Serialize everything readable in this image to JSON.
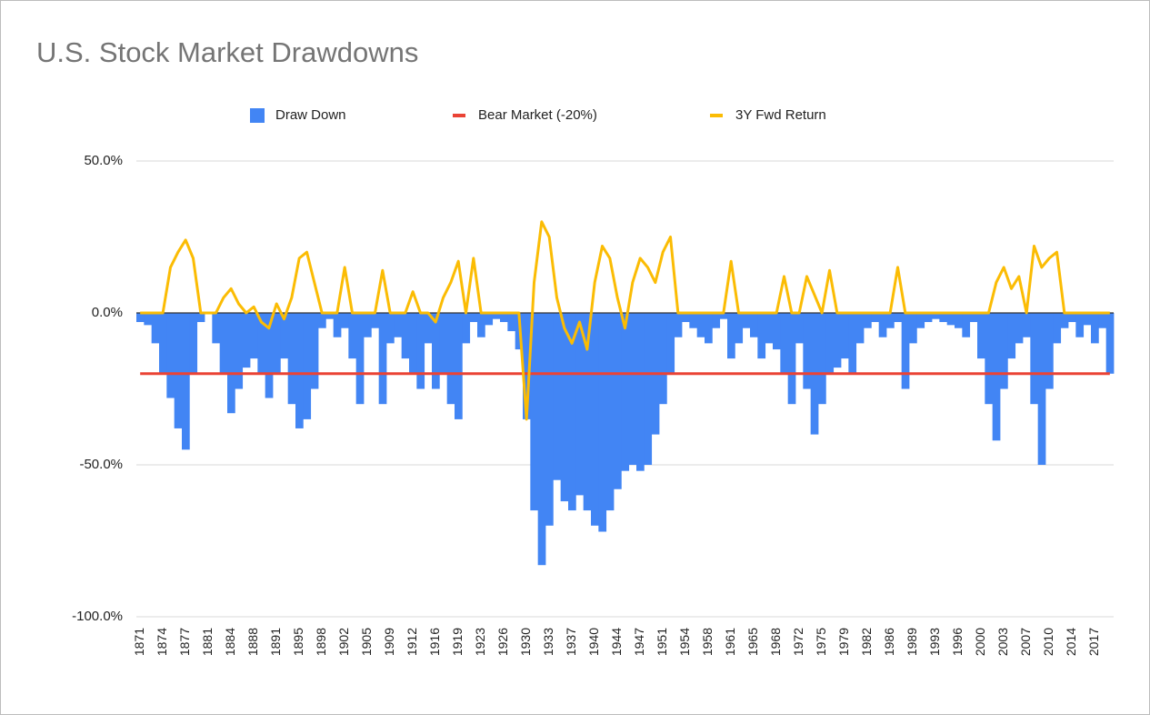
{
  "chart_data": {
    "type": "combo",
    "title": "U.S. Stock Market Drawdowns",
    "categories": [
      "1871",
      null,
      null,
      "1874",
      null,
      null,
      "1877",
      null,
      null,
      "1881",
      null,
      null,
      "1884",
      null,
      null,
      "1888",
      null,
      null,
      "1891",
      null,
      null,
      "1895",
      null,
      null,
      "1898",
      null,
      null,
      "1902",
      null,
      null,
      "1905",
      null,
      null,
      "1909",
      null,
      null,
      "1912",
      null,
      null,
      "1916",
      null,
      null,
      "1919",
      null,
      null,
      "1923",
      null,
      null,
      "1926",
      null,
      null,
      "1930",
      null,
      null,
      "1933",
      null,
      null,
      "1937",
      null,
      null,
      "1940",
      null,
      null,
      "1944",
      null,
      null,
      "1947",
      null,
      null,
      "1951",
      null,
      null,
      "1954",
      null,
      null,
      "1958",
      null,
      null,
      "1961",
      null,
      null,
      "1965",
      null,
      null,
      "1968",
      null,
      null,
      "1972",
      null,
      null,
      "1975",
      null,
      null,
      "1979",
      null,
      null,
      "1982",
      null,
      null,
      "1986",
      null,
      null,
      "1989",
      null,
      null,
      "1993",
      null,
      null,
      "1996",
      null,
      null,
      "2000",
      null,
      null,
      "2003",
      null,
      null,
      "2007",
      null,
      null,
      "2010",
      null,
      null,
      "2014",
      null,
      null,
      "2017",
      null,
      null
    ],
    "series": [
      {
        "name": "Draw Down",
        "type": "bar",
        "color": "#4285f4",
        "values": [
          -3,
          -4,
          -10,
          -20,
          -28,
          -38,
          -45,
          -20,
          -3,
          0,
          -10,
          -20,
          -33,
          -25,
          -18,
          -15,
          -20,
          -28,
          -20,
          -15,
          -30,
          -38,
          -35,
          -25,
          -5,
          -2,
          -8,
          -5,
          -15,
          -30,
          -8,
          -5,
          -30,
          -10,
          -8,
          -15,
          -20,
          -25,
          -10,
          -25,
          -20,
          -30,
          -35,
          -10,
          -3,
          -8,
          -4,
          -2,
          -3,
          -6,
          -12,
          -35,
          -65,
          -83,
          -70,
          -55,
          -62,
          -65,
          -60,
          -65,
          -70,
          -72,
          -65,
          -58,
          -52,
          -50,
          -52,
          -50,
          -40,
          -30,
          -20,
          -8,
          -3,
          -5,
          -8,
          -10,
          -5,
          -2,
          -15,
          -10,
          -5,
          -8,
          -15,
          -10,
          -12,
          -20,
          -30,
          -10,
          -25,
          -40,
          -30,
          -20,
          -18,
          -15,
          -20,
          -10,
          -5,
          -3,
          -8,
          -5,
          -3,
          -25,
          -10,
          -5,
          -3,
          -2,
          -3,
          -4,
          -5,
          -8,
          -3,
          -15,
          -30,
          -42,
          -25,
          -15,
          -10,
          -8,
          -30,
          -50,
          -25,
          -10,
          -5,
          -3,
          -8,
          -4,
          -10,
          -5,
          -20
        ]
      },
      {
        "name": "Bear Market (-20%)",
        "type": "line",
        "color": "#ea4335",
        "values": [
          -20,
          -20,
          -20,
          -20,
          -20,
          -20,
          -20,
          -20,
          -20,
          -20,
          -20,
          -20,
          -20,
          -20,
          -20,
          -20,
          -20,
          -20,
          -20,
          -20,
          -20,
          -20,
          -20,
          -20,
          -20,
          -20,
          -20,
          -20,
          -20,
          -20,
          -20,
          -20,
          -20,
          -20,
          -20,
          -20,
          -20,
          -20,
          -20,
          -20,
          -20,
          -20,
          -20,
          -20,
          -20,
          -20,
          -20,
          -20,
          -20,
          -20,
          -20,
          -20,
          -20,
          -20,
          -20,
          -20,
          -20,
          -20,
          -20,
          -20,
          -20,
          -20,
          -20,
          -20,
          -20,
          -20,
          -20,
          -20,
          -20,
          -20,
          -20,
          -20,
          -20,
          -20,
          -20,
          -20,
          -20,
          -20,
          -20,
          -20,
          -20,
          -20,
          -20,
          -20,
          -20,
          -20,
          -20,
          -20,
          -20,
          -20,
          -20,
          -20,
          -20,
          -20,
          -20,
          -20,
          -20,
          -20,
          -20,
          -20,
          -20,
          -20,
          -20,
          -20,
          -20,
          -20,
          -20,
          -20,
          -20,
          -20,
          -20,
          -20,
          -20,
          -20,
          -20,
          -20,
          -20,
          -20,
          -20,
          -20,
          -20,
          -20,
          -20,
          -20,
          -20,
          -20,
          -20,
          -20,
          -20
        ]
      },
      {
        "name": "3Y Fwd Return",
        "type": "line",
        "color": "#fbbc04",
        "values": [
          0,
          0,
          0,
          0,
          15,
          20,
          24,
          18,
          0,
          0,
          0,
          5,
          8,
          3,
          0,
          2,
          -3,
          -5,
          3,
          -2,
          5,
          18,
          20,
          10,
          0,
          0,
          0,
          15,
          0,
          0,
          0,
          0,
          14,
          0,
          0,
          0,
          7,
          0,
          0,
          -3,
          5,
          10,
          17,
          0,
          18,
          0,
          0,
          0,
          0,
          0,
          0,
          -35,
          10,
          30,
          25,
          5,
          -5,
          -10,
          -3,
          -12,
          10,
          22,
          18,
          5,
          -5,
          10,
          18,
          15,
          10,
          20,
          25,
          0,
          0,
          0,
          0,
          0,
          0,
          0,
          17,
          0,
          0,
          0,
          0,
          0,
          0,
          12,
          0,
          0,
          12,
          6,
          0,
          14,
          0,
          0,
          0,
          0,
          0,
          0,
          0,
          0,
          15,
          0,
          0,
          0,
          0,
          0,
          0,
          0,
          0,
          0,
          0,
          0,
          0,
          10,
          15,
          8,
          12,
          0,
          22,
          15,
          18,
          20,
          0,
          0,
          0,
          0,
          0,
          0,
          0
        ]
      }
    ],
    "ylim": [
      -100,
      50
    ],
    "yticks": [
      {
        "value": -100,
        "label": "-100.0%"
      },
      {
        "value": -50,
        "label": "-50.0%"
      },
      {
        "value": 0,
        "label": "0.0%"
      },
      {
        "value": 50,
        "label": "50.0%"
      }
    ],
    "grid": true,
    "legend": "top"
  }
}
